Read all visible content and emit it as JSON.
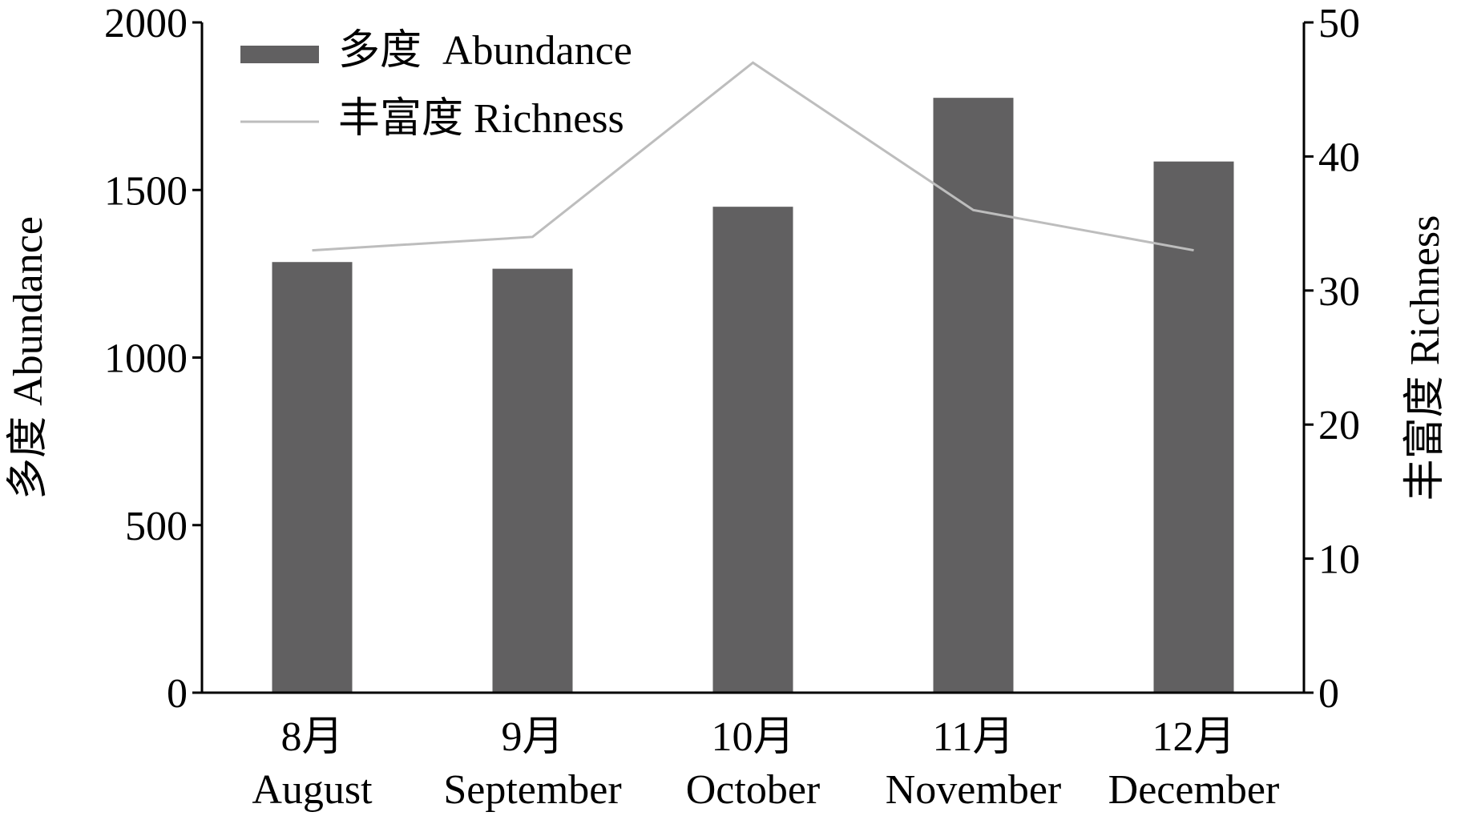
{
  "chart_data": {
    "type": "bar",
    "categories": [
      {
        "month": "8月",
        "name": "August"
      },
      {
        "month": "9月",
        "name": "September"
      },
      {
        "month": "10月",
        "name": "October"
      },
      {
        "month": "11月",
        "name": "November"
      },
      {
        "month": "12月",
        "name": "December"
      }
    ],
    "series": [
      {
        "name": "多度  Abundance",
        "type": "bar",
        "axis": "left",
        "color": "#616061",
        "values": [
          1285,
          1265,
          1450,
          1775,
          1585
        ]
      },
      {
        "name": "丰富度 Richness",
        "type": "line",
        "axis": "right",
        "color": "#bdbdbd",
        "values": [
          33,
          34,
          47,
          36,
          33
        ]
      }
    ],
    "ylabel_left": "多度 Abundance",
    "ylabel_right": "丰富度 Richness",
    "ylim_left": [
      0,
      2000
    ],
    "ylim_right": [
      0,
      50
    ],
    "yticks_left": [
      "0",
      "500",
      "1000",
      "1500",
      "2000"
    ],
    "yticks_right": [
      "0",
      "10",
      "20",
      "30",
      "40",
      "50"
    ],
    "legend_position": "top-left",
    "grid": false
  }
}
